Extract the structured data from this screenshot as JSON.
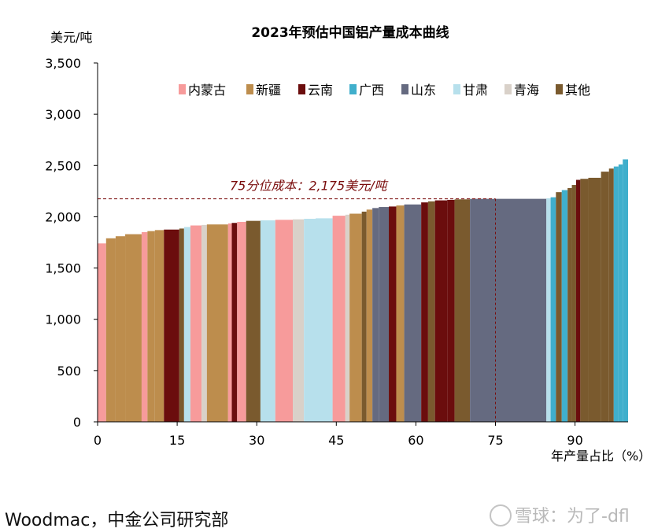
{
  "chart_data": {
    "type": "bar",
    "title": "2023年预估中国铝产量成本曲线",
    "ylabel": "美元/吨",
    "xlabel": "年产量占比（%）",
    "ylim": [
      0,
      3500
    ],
    "xlim": [
      0,
      100
    ],
    "yticks": [
      "0",
      "500",
      "1,000",
      "1,500",
      "2,000",
      "2,500",
      "3,000",
      "3,500"
    ],
    "xticks": [
      "0",
      "15",
      "30",
      "45",
      "60",
      "75",
      "90"
    ],
    "legend": [
      {
        "name": "内蒙古",
        "color": "#F79B9B"
      },
      {
        "name": "新疆",
        "color": "#BD8D4D"
      },
      {
        "name": "云南",
        "color": "#6B0D0D"
      },
      {
        "name": "广西",
        "color": "#40AFCC"
      },
      {
        "name": "山东",
        "color": "#656A80"
      },
      {
        "name": "甘肃",
        "color": "#B7E0EC"
      },
      {
        "name": "青海",
        "color": "#D9D1C9"
      },
      {
        "name": "其他",
        "color": "#7A5A2E"
      }
    ],
    "legend_position": "top",
    "reference_line": {
      "value": 2175,
      "x_end": 75,
      "label": "75分位成本：2,175美元/吨"
    },
    "bars": [
      {
        "x0": 0.0,
        "x1": 1.6,
        "value": 1740,
        "region": "内蒙古"
      },
      {
        "x0": 1.6,
        "x1": 3.4,
        "value": 1790,
        "region": "新疆"
      },
      {
        "x0": 3.4,
        "x1": 5.2,
        "value": 1810,
        "region": "新疆"
      },
      {
        "x0": 5.2,
        "x1": 8.3,
        "value": 1830,
        "region": "新疆"
      },
      {
        "x0": 8.3,
        "x1": 9.4,
        "value": 1850,
        "region": "内蒙古"
      },
      {
        "x0": 9.4,
        "x1": 10.8,
        "value": 1860,
        "region": "新疆"
      },
      {
        "x0": 10.8,
        "x1": 12.5,
        "value": 1870,
        "region": "新疆"
      },
      {
        "x0": 12.5,
        "x1": 15.4,
        "value": 1875,
        "region": "云南"
      },
      {
        "x0": 15.4,
        "x1": 16.3,
        "value": 1885,
        "region": "其他"
      },
      {
        "x0": 16.3,
        "x1": 17.5,
        "value": 1900,
        "region": "甘肃"
      },
      {
        "x0": 17.5,
        "x1": 19.6,
        "value": 1915,
        "region": "内蒙古"
      },
      {
        "x0": 19.6,
        "x1": 20.6,
        "value": 1920,
        "region": "青海"
      },
      {
        "x0": 20.6,
        "x1": 24.6,
        "value": 1925,
        "region": "新疆"
      },
      {
        "x0": 24.6,
        "x1": 25.3,
        "value": 1935,
        "region": "内蒙古"
      },
      {
        "x0": 25.3,
        "x1": 26.3,
        "value": 1940,
        "region": "云南"
      },
      {
        "x0": 26.3,
        "x1": 28.0,
        "value": 1950,
        "region": "内蒙古"
      },
      {
        "x0": 28.0,
        "x1": 30.7,
        "value": 1960,
        "region": "其他"
      },
      {
        "x0": 30.7,
        "x1": 33.5,
        "value": 1965,
        "region": "甘肃"
      },
      {
        "x0": 33.5,
        "x1": 36.8,
        "value": 1970,
        "region": "内蒙古"
      },
      {
        "x0": 36.8,
        "x1": 38.9,
        "value": 1975,
        "region": "青海"
      },
      {
        "x0": 38.9,
        "x1": 41.1,
        "value": 1980,
        "region": "甘肃"
      },
      {
        "x0": 41.1,
        "x1": 44.3,
        "value": 1985,
        "region": "甘肃"
      },
      {
        "x0": 44.3,
        "x1": 46.7,
        "value": 2010,
        "region": "内蒙古"
      },
      {
        "x0": 46.7,
        "x1": 47.5,
        "value": 2020,
        "region": "青海"
      },
      {
        "x0": 47.5,
        "x1": 49.8,
        "value": 2030,
        "region": "新疆"
      },
      {
        "x0": 49.8,
        "x1": 50.7,
        "value": 2050,
        "region": "其他"
      },
      {
        "x0": 50.7,
        "x1": 51.8,
        "value": 2070,
        "region": "新疆"
      },
      {
        "x0": 51.8,
        "x1": 53.0,
        "value": 2085,
        "region": "山东"
      },
      {
        "x0": 53.0,
        "x1": 54.9,
        "value": 2095,
        "region": "山东"
      },
      {
        "x0": 54.9,
        "x1": 56.3,
        "value": 2100,
        "region": "云南"
      },
      {
        "x0": 56.3,
        "x1": 57.8,
        "value": 2110,
        "region": "新疆"
      },
      {
        "x0": 57.8,
        "x1": 61.0,
        "value": 2120,
        "region": "山东"
      },
      {
        "x0": 61.0,
        "x1": 62.3,
        "value": 2140,
        "region": "云南"
      },
      {
        "x0": 62.3,
        "x1": 63.6,
        "value": 2150,
        "region": "其他"
      },
      {
        "x0": 63.6,
        "x1": 65.9,
        "value": 2160,
        "region": "云南"
      },
      {
        "x0": 65.9,
        "x1": 67.3,
        "value": 2165,
        "region": "云南"
      },
      {
        "x0": 67.3,
        "x1": 70.2,
        "value": 2170,
        "region": "其他"
      },
      {
        "x0": 70.2,
        "x1": 84.6,
        "value": 2175,
        "region": "山东"
      },
      {
        "x0": 84.6,
        "x1": 85.4,
        "value": 2180,
        "region": "甘肃"
      },
      {
        "x0": 85.4,
        "x1": 86.4,
        "value": 2190,
        "region": "广西"
      },
      {
        "x0": 86.4,
        "x1": 87.5,
        "value": 2240,
        "region": "其他"
      },
      {
        "x0": 87.5,
        "x1": 88.6,
        "value": 2260,
        "region": "广西"
      },
      {
        "x0": 88.6,
        "x1": 89.4,
        "value": 2280,
        "region": "其他"
      },
      {
        "x0": 89.4,
        "x1": 90.2,
        "value": 2310,
        "region": "其他"
      },
      {
        "x0": 90.2,
        "x1": 91.0,
        "value": 2360,
        "region": "云南"
      },
      {
        "x0": 91.0,
        "x1": 92.5,
        "value": 2370,
        "region": "其他"
      },
      {
        "x0": 92.5,
        "x1": 94.9,
        "value": 2380,
        "region": "其他"
      },
      {
        "x0": 94.9,
        "x1": 96.4,
        "value": 2440,
        "region": "其他"
      },
      {
        "x0": 96.4,
        "x1": 97.3,
        "value": 2470,
        "region": "其他"
      },
      {
        "x0": 97.3,
        "x1": 98.2,
        "value": 2490,
        "region": "广西"
      },
      {
        "x0": 98.2,
        "x1": 99.0,
        "value": 2510,
        "region": "广西"
      },
      {
        "x0": 99.0,
        "x1": 100.0,
        "value": 2560,
        "region": "广西"
      }
    ]
  },
  "footer": {
    "source": "Woodmac，中金公司研究部"
  },
  "watermark": {
    "text": "雪球：为了-dfl"
  }
}
